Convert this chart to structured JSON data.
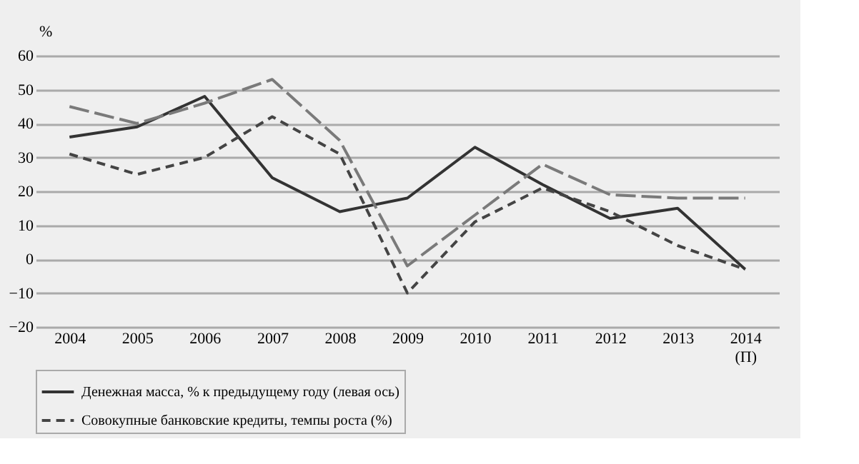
{
  "chart_data": {
    "type": "line",
    "ylabel": "%",
    "categories": [
      "2004",
      "2005",
      "2006",
      "2007",
      "2008",
      "2009",
      "2010",
      "2011",
      "2012",
      "2013",
      "2014 (П)"
    ],
    "series": [
      {
        "name": "Денежная масса, % к предыдущему году (левая ось)",
        "color": "#333333",
        "line_style": "solid",
        "values": [
          36,
          39,
          48,
          24,
          14,
          18,
          33,
          22,
          12,
          15,
          -3
        ]
      },
      {
        "name": "Совокупные банковские кредиты, темпы роста (%)",
        "color": "#444444",
        "line_style": "dashed",
        "values": [
          31,
          25,
          30,
          42,
          31,
          -10,
          11,
          21,
          14,
          4,
          -3
        ]
      },
      {
        "color": "#7a7a7a",
        "line_style": "dashed",
        "values": [
          45,
          40,
          46,
          53,
          35,
          -2,
          13,
          28,
          19,
          18,
          18
        ]
      }
    ],
    "ylim": [
      -20,
      60
    ],
    "yticks": [
      -20,
      -10,
      0,
      10,
      20,
      30,
      40,
      50,
      60
    ],
    "grid": "y",
    "legend": "bottom",
    "marker": "none"
  }
}
